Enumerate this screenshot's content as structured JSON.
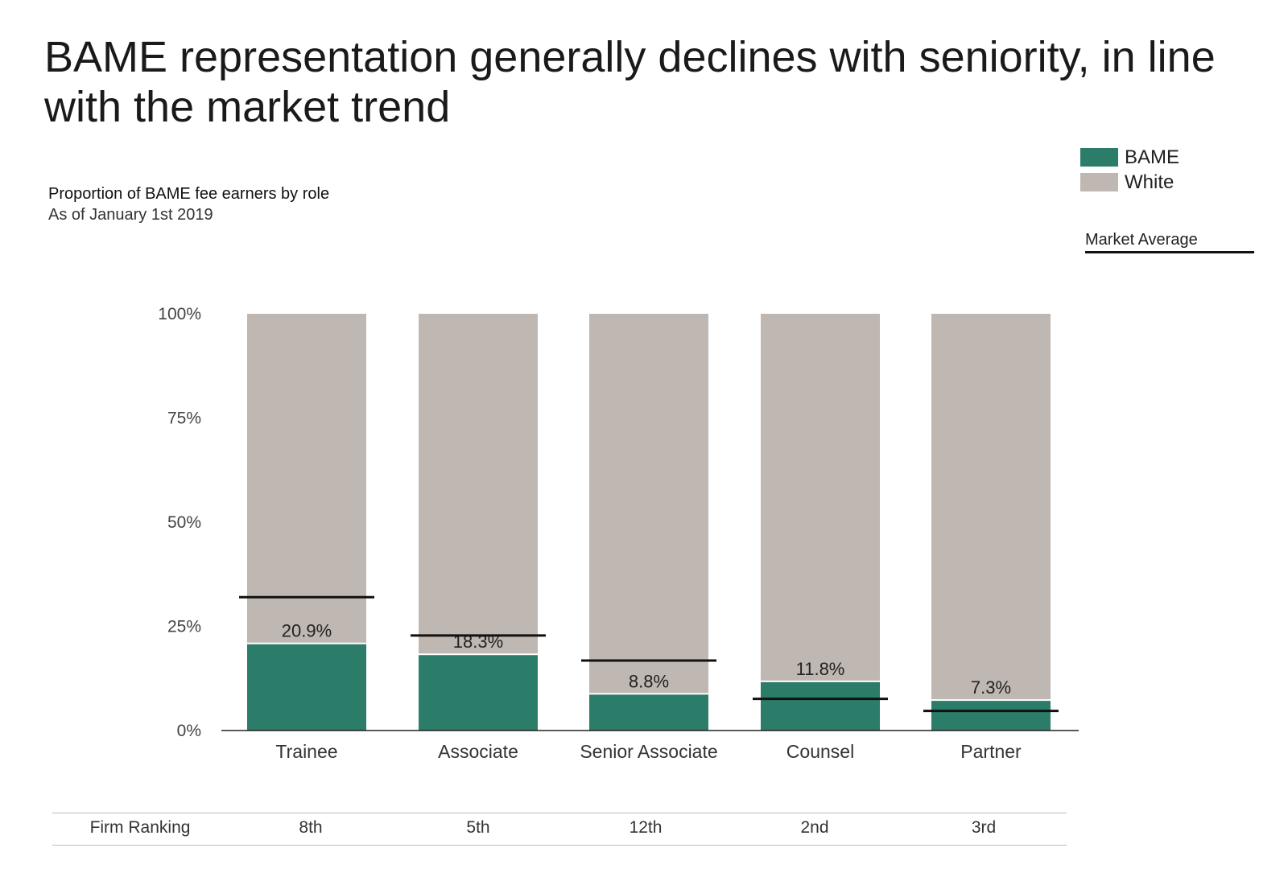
{
  "title": "BAME representation generally declines with seniority, in line with the market trend",
  "subtitle": "Proportion of BAME fee earners by role",
  "subtitle2": "As of January 1st 2019",
  "legend": {
    "items": [
      {
        "label": "BAME",
        "color": "#2b7c68"
      },
      {
        "label": "White",
        "color": "#bfb7b1"
      }
    ],
    "market_label": "Market Average"
  },
  "chart_data": {
    "type": "bar",
    "stacked": true,
    "categories": [
      "Trainee",
      "Associate",
      "Senior Associate",
      "Counsel",
      "Partner"
    ],
    "series": [
      {
        "name": "BAME",
        "values": [
          20.9,
          18.3,
          8.8,
          11.8,
          7.3
        ],
        "color": "#2b7c68"
      },
      {
        "name": "White",
        "values": [
          79.1,
          81.7,
          91.2,
          88.2,
          92.7
        ],
        "color": "#bfb7b1"
      }
    ],
    "data_labels": [
      "20.9%",
      "18.3%",
      "8.8%",
      "11.8%",
      "7.3%"
    ],
    "market_average": [
      32.0,
      22.8,
      16.8,
      7.6,
      4.7
    ],
    "yticks": [
      "0%",
      "25%",
      "50%",
      "75%",
      "100%"
    ],
    "ylim": [
      0,
      100
    ]
  },
  "ranking": {
    "label": "Firm Ranking",
    "values": [
      "8th",
      "5th",
      "12th",
      "2nd",
      "3rd"
    ]
  }
}
